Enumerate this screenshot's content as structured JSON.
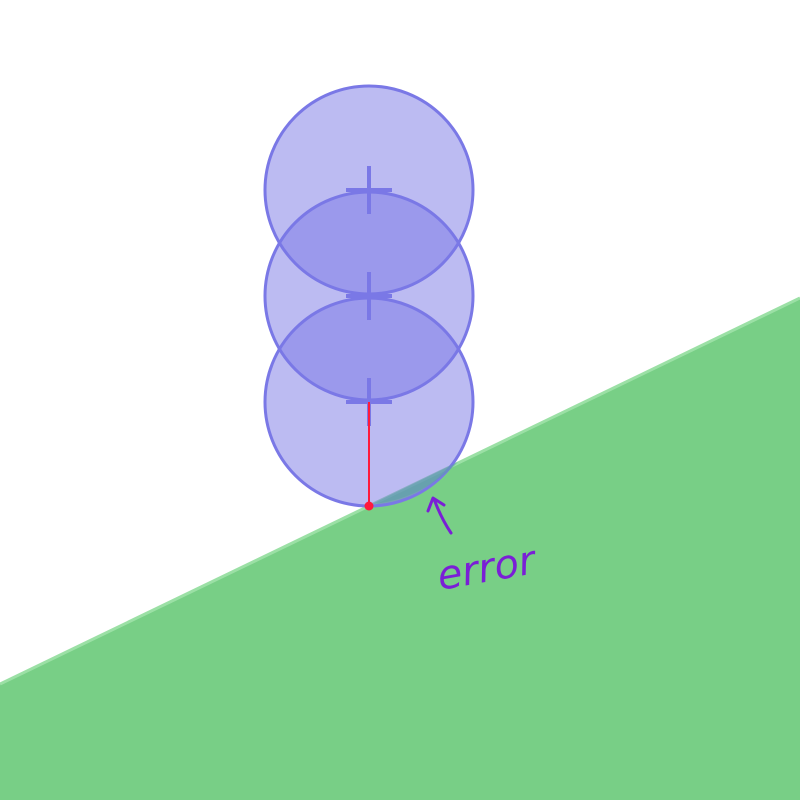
{
  "diagram": {
    "annotation_text": "error",
    "ground": {
      "color": "#78cf86",
      "edge_color": "#9be0a5"
    },
    "circles": {
      "fill": "#b9b8f2",
      "stroke": "#7a78e6",
      "overlap_fill": "#9d9cec",
      "count": 3
    },
    "contact": {
      "color": "#ff1a3c"
    },
    "annotation_color": "#7a1fd6"
  }
}
